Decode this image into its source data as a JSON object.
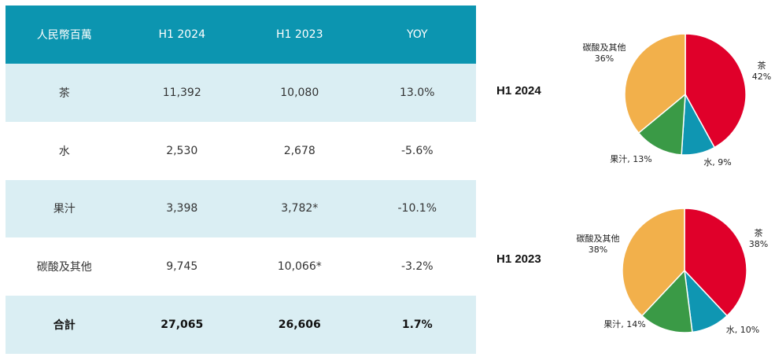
{
  "table": {
    "headers": [
      "人民幣百萬",
      "H1 2024",
      "H1 2023",
      "YOY"
    ],
    "rows": [
      [
        "茶",
        "11,392",
        "10,080",
        "13.0%"
      ],
      [
        "水",
        "2,530",
        "2,678",
        "-5.6%"
      ],
      [
        "果汁",
        "3,398",
        "3,782*",
        "-10.1%"
      ],
      [
        "碳酸及其他",
        "9,745",
        "10,066*",
        "-3.2%"
      ],
      [
        "合計",
        "27,065",
        "26,606",
        "1.7%"
      ]
    ]
  },
  "colors": {
    "header_bg": "#0c95b0",
    "stripe_bg": "#daeef3",
    "tea": "#e0002a",
    "water": "#0f96b2",
    "juice": "#3a9a46",
    "carbonated": "#f2b04b"
  },
  "chart_data": [
    {
      "type": "pie",
      "title": "H1 2024",
      "categories": [
        "茶",
        "水",
        "果汁",
        "碳酸及其他"
      ],
      "values": [
        42,
        9,
        13,
        36
      ],
      "labels": [
        {
          "name": "茶",
          "pct": "42%"
        },
        {
          "name": "水,",
          "pct": "9%"
        },
        {
          "name": "果汁,",
          "pct": "13%"
        },
        {
          "name": "碳酸及其他",
          "pct": "36%"
        }
      ]
    },
    {
      "type": "pie",
      "title": "H1 2023",
      "categories": [
        "茶",
        "水",
        "果汁",
        "碳酸及其他"
      ],
      "values": [
        38,
        10,
        14,
        38
      ],
      "labels": [
        {
          "name": "茶",
          "pct": "38%"
        },
        {
          "name": "水,",
          "pct": "10%"
        },
        {
          "name": "果汁,",
          "pct": "14%"
        },
        {
          "name": "碳酸及其他",
          "pct": "38%"
        }
      ]
    }
  ]
}
